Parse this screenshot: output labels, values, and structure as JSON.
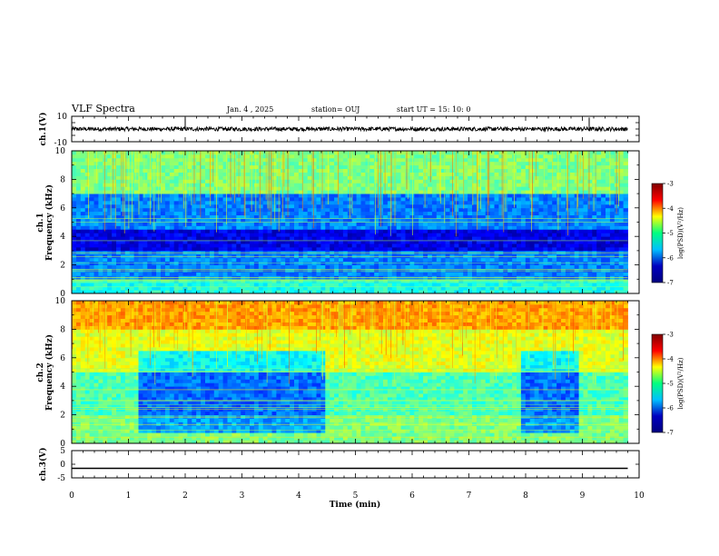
{
  "header": {
    "title": "VLF Spectra",
    "date": "Jan. 4 , 2025",
    "station": "station= OUJ",
    "start": "start UT =  15: 10: 0"
  },
  "colorbar": {
    "label": "log(PSD)(V²/Hz)",
    "ticks": [
      "-3",
      "-4",
      "-5",
      "-6",
      "-7"
    ],
    "colors": [
      "#7f0000",
      "#ff0000",
      "#ffff00",
      "#00ff80",
      "#00c0ff",
      "#0000c0",
      "#00007f"
    ]
  },
  "chart_data": [
    {
      "type": "line",
      "name": "ch1-waveform",
      "ylabel": "ch.1(V)",
      "ylim": [
        -10,
        10
      ],
      "yticks": [
        "10",
        "-10"
      ],
      "x": [
        0,
        1,
        2,
        3,
        4,
        5,
        6,
        7,
        8,
        9,
        9.8
      ],
      "y": [
        0,
        0,
        0,
        0,
        0,
        0,
        0,
        0,
        0,
        0,
        0
      ],
      "spikes": [
        {
          "x": 2.0,
          "y": 9
        },
        {
          "x": 9.12,
          "y": 9
        }
      ]
    },
    {
      "type": "heatmap",
      "name": "ch1-spectrogram",
      "ylabel": "ch.1",
      "ylabel2": "Frequency (kHz)",
      "ylim": [
        0,
        10
      ],
      "yticks": [
        "0",
        "2",
        "4",
        "6",
        "8",
        "10"
      ],
      "xlim": [
        0,
        9.8
      ],
      "bands": [
        {
          "from": 0,
          "to": 1,
          "level": 0.4
        },
        {
          "from": 1,
          "to": 3,
          "level": 0.25
        },
        {
          "from": 3,
          "to": 4.5,
          "level": 0.1
        },
        {
          "from": 4.5,
          "to": 7,
          "level": 0.25
        },
        {
          "from": 7,
          "to": 10,
          "level": 0.5
        }
      ]
    },
    {
      "type": "heatmap",
      "name": "ch2-spectrogram",
      "ylabel": "ch.2",
      "ylabel2": "Frequency (kHz)",
      "ylim": [
        0,
        10
      ],
      "yticks": [
        "0",
        "2",
        "4",
        "6",
        "8",
        "10"
      ],
      "xlim": [
        0,
        9.8
      ],
      "bands": [
        {
          "from": 0,
          "to": 2,
          "level": 0.5
        },
        {
          "from": 2,
          "to": 5,
          "level": 0.45
        },
        {
          "from": 5,
          "to": 8,
          "level": 0.6
        },
        {
          "from": 8,
          "to": 10,
          "level": 0.72
        }
      ],
      "dark_intervals": [
        [
          1.1,
          4.4
        ],
        [
          7.9,
          8.9
        ]
      ]
    },
    {
      "type": "line",
      "name": "ch3-waveform",
      "ylabel": "ch.3(V)",
      "ylim": [
        -5,
        5
      ],
      "yticks": [
        "5",
        "0",
        "-5"
      ],
      "x": [
        0,
        9.8
      ],
      "y": [
        -1.5,
        -1.5
      ]
    }
  ],
  "xaxis": {
    "label": "Time (min)",
    "xlim": [
      0,
      10
    ],
    "ticks": [
      "0",
      "1",
      "2",
      "3",
      "4",
      "5",
      "6",
      "7",
      "8",
      "9",
      "10"
    ]
  }
}
